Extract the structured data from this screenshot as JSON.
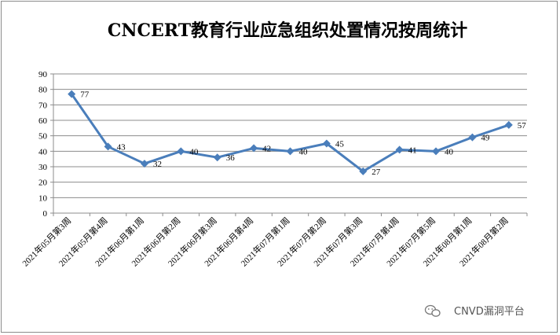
{
  "chart_data": {
    "type": "line",
    "title": "CNCERT教育行业应急组织处置情况按周统计",
    "xlabel": "",
    "ylabel": "",
    "ylim": [
      0,
      90
    ],
    "yticks": [
      0,
      10,
      20,
      30,
      40,
      50,
      60,
      70,
      80,
      90
    ],
    "grid": true,
    "legend": "none",
    "categories": [
      "2021年05月第3周",
      "2021年05月第4周",
      "2021年06月第1周",
      "2021年06月第2周",
      "2021年06月第3周",
      "2021年06月第4周",
      "2021年07月第1周",
      "2021年07月第2周",
      "2021年07月第3周",
      "2021年07月第4周",
      "2021年07月第5周",
      "2021年08月第1周",
      "2021年08月第2周"
    ],
    "series": [
      {
        "values": [
          77,
          43,
          32,
          40,
          36,
          42,
          40,
          45,
          27,
          41,
          40,
          49,
          57
        ]
      }
    ],
    "line_color": "#4a7ebb"
  },
  "watermark": {
    "icon": "wechat-bubble-icon",
    "text": "CNVD漏洞平台"
  }
}
